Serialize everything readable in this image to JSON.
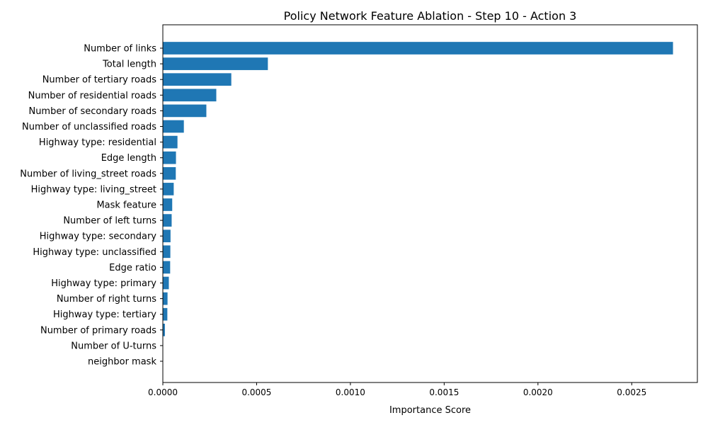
{
  "chart_data": {
    "type": "bar",
    "orientation": "horizontal",
    "title": "Policy Network Feature Ablation - Step 10 - Action 3",
    "xlabel": "Importance Score",
    "ylabel": "",
    "xlim": [
      0,
      0.00285
    ],
    "xticks": [
      0.0,
      0.0005,
      0.001,
      0.0015,
      0.002,
      0.0025
    ],
    "xtick_labels": [
      "0.0000",
      "0.0005",
      "0.0010",
      "0.0015",
      "0.0020",
      "0.0025"
    ],
    "grid": false,
    "bar_color": "#1f77b4",
    "categories": [
      "Number of links",
      "Total length",
      "Number of tertiary roads",
      "Number of residential roads",
      "Number of secondary roads",
      "Number of unclassified roads",
      "Highway type: residential",
      "Edge length",
      "Number of living_street roads",
      "Highway type: living_street",
      "Mask feature",
      "Number of left turns",
      "Highway type: secondary",
      "Highway type: unclassified",
      "Edge ratio",
      "Highway type: primary",
      "Number of right turns",
      "Highway type: tertiary",
      "Number of primary roads",
      "Number of U-turns",
      "neighbor mask"
    ],
    "values": [
      0.00272,
      0.00056,
      0.000365,
      0.000285,
      0.000232,
      0.000112,
      7.8e-05,
      7e-05,
      6.9e-05,
      5.8e-05,
      5e-05,
      4.7e-05,
      4.1e-05,
      4e-05,
      3.9e-05,
      3.2e-05,
      2.5e-05,
      2.4e-05,
      1.1e-05,
      0.0,
      0.0
    ]
  }
}
